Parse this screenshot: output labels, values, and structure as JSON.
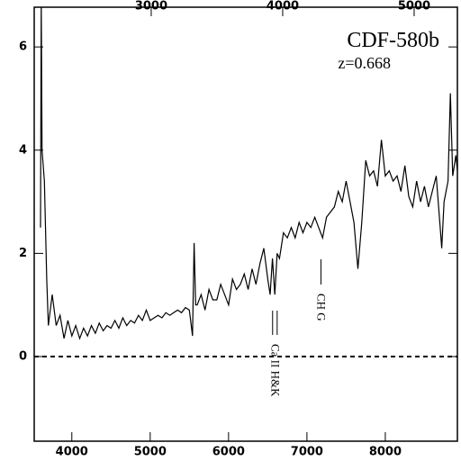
{
  "chart_data": {
    "type": "line",
    "title": "CDF-580b",
    "subtitle": "z=0.668",
    "color": "#000000",
    "x": [
      3600,
      3610,
      3620,
      3650,
      3680,
      3700,
      3750,
      3800,
      3850,
      3900,
      3950,
      4000,
      4050,
      4100,
      4150,
      4200,
      4250,
      4300,
      4350,
      4400,
      4450,
      4500,
      4550,
      4600,
      4650,
      4700,
      4750,
      4800,
      4850,
      4900,
      4950,
      5000,
      5050,
      5100,
      5150,
      5200,
      5250,
      5300,
      5350,
      5400,
      5450,
      5500,
      5540,
      5560,
      5580,
      5600,
      5650,
      5700,
      5750,
      5800,
      5850,
      5900,
      5950,
      6000,
      6050,
      6100,
      6150,
      6200,
      6250,
      6300,
      6350,
      6400,
      6450,
      6500,
      6530,
      6560,
      6590,
      6620,
      6650,
      6700,
      6750,
      6800,
      6850,
      6900,
      6950,
      7000,
      7050,
      7100,
      7150,
      7200,
      7250,
      7300,
      7350,
      7400,
      7450,
      7500,
      7550,
      7600,
      7650,
      7700,
      7750,
      7800,
      7850,
      7900,
      7950,
      8000,
      8050,
      8100,
      8150,
      8200,
      8250,
      8300,
      8350,
      8400,
      8450,
      8500,
      8550,
      8600,
      8650,
      8700,
      8720,
      8750,
      8800,
      8830,
      8860,
      8900,
      8920
    ],
    "values": [
      2.5,
      6.9,
      4.0,
      3.4,
      1.5,
      0.6,
      1.2,
      0.6,
      0.8,
      0.35,
      0.7,
      0.4,
      0.6,
      0.35,
      0.55,
      0.4,
      0.6,
      0.45,
      0.65,
      0.5,
      0.6,
      0.55,
      0.7,
      0.55,
      0.75,
      0.6,
      0.7,
      0.65,
      0.8,
      0.7,
      0.9,
      0.7,
      0.75,
      0.8,
      0.75,
      0.85,
      0.8,
      0.85,
      0.9,
      0.85,
      0.95,
      0.9,
      0.4,
      2.2,
      1.0,
      1.0,
      1.2,
      0.9,
      1.3,
      1.1,
      1.1,
      1.4,
      1.2,
      1.0,
      1.5,
      1.3,
      1.4,
      1.6,
      1.3,
      1.7,
      1.4,
      1.8,
      2.1,
      1.5,
      1.2,
      1.9,
      1.2,
      2.0,
      1.9,
      2.4,
      2.3,
      2.5,
      2.3,
      2.6,
      2.4,
      2.6,
      2.5,
      2.7,
      2.5,
      2.3,
      2.7,
      2.8,
      2.9,
      3.2,
      3.0,
      3.4,
      3.0,
      2.6,
      1.7,
      2.6,
      3.8,
      3.5,
      3.6,
      3.3,
      4.2,
      3.5,
      3.6,
      3.4,
      3.5,
      3.2,
      3.7,
      3.1,
      2.9,
      3.4,
      3.0,
      3.3,
      2.9,
      3.2,
      3.5,
      2.5,
      2.1,
      3.0,
      3.4,
      5.1,
      3.5,
      3.9,
      3.6
    ],
    "xlim": [
      3520,
      8920
    ],
    "xticks": [
      4000,
      5000,
      6000,
      7000,
      8000
    ],
    "x2lim": [
      2110,
      5329
    ],
    "x2ticks": [
      3000,
      4000,
      5000
    ],
    "ylim": [
      -1.64,
      6.77
    ],
    "yticks": [
      0,
      2,
      4,
      6
    ],
    "reference_line": 0,
    "annotations": [
      {
        "text": "Ca II H&K",
        "x": [
          6562,
          6620
        ]
      },
      {
        "text": "CH G",
        "x": [
          7179
        ]
      }
    ]
  }
}
